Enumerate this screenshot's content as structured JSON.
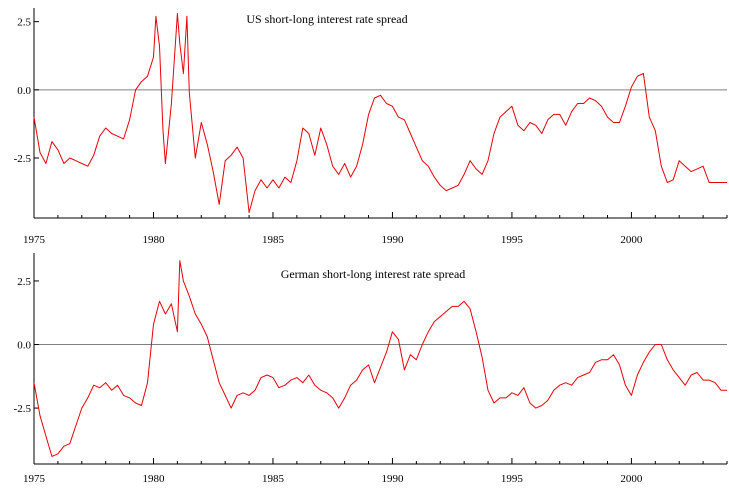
{
  "chart_data": [
    {
      "type": "line",
      "title": "US short-long interest rate spread",
      "xlim": [
        1975,
        2004.0
      ],
      "ylim": [
        -4.7,
        3.0
      ],
      "xticks": [
        1975,
        1980,
        1985,
        1990,
        1995,
        2000
      ],
      "yticks": [
        2.5,
        0.0,
        -2.5
      ],
      "ytick_labels": [
        "2.5",
        "0.0",
        "-2.5"
      ],
      "grid": false,
      "zero_line": true,
      "colors": {
        "series": "#e8000b",
        "zero_line": "#808080",
        "axis": "#000000"
      },
      "series": [
        {
          "x": [
            1975.0,
            1975.25,
            1975.5,
            1975.75,
            1976.0,
            1976.25,
            1976.5,
            1976.75,
            1977.0,
            1977.25,
            1977.5,
            1977.75,
            1978.0,
            1978.25,
            1978.5,
            1978.75,
            1979.0,
            1979.25,
            1979.5,
            1979.75,
            1980.0,
            1980.1,
            1980.25,
            1980.4,
            1980.5,
            1980.75,
            1981.0,
            1981.1,
            1981.25,
            1981.4,
            1981.5,
            1981.75,
            1982.0,
            1982.25,
            1982.5,
            1982.75,
            1983.0,
            1983.25,
            1983.5,
            1983.75,
            1984.0,
            1984.25,
            1984.5,
            1984.75,
            1985.0,
            1985.25,
            1985.5,
            1985.75,
            1986.0,
            1986.25,
            1986.5,
            1986.75,
            1987.0,
            1987.25,
            1987.5,
            1987.75,
            1988.0,
            1988.25,
            1988.5,
            1988.75,
            1989.0,
            1989.25,
            1989.5,
            1989.75,
            1990.0,
            1990.25,
            1990.5,
            1990.75,
            1991.0,
            1991.25,
            1991.5,
            1991.75,
            1992.0,
            1992.25,
            1992.5,
            1992.75,
            1993.0,
            1993.25,
            1993.5,
            1993.75,
            1994.0,
            1994.25,
            1994.5,
            1994.75,
            1995.0,
            1995.25,
            1995.5,
            1995.75,
            1996.0,
            1996.25,
            1996.5,
            1996.75,
            1997.0,
            1997.25,
            1997.5,
            1997.75,
            1998.0,
            1998.25,
            1998.5,
            1998.75,
            1999.0,
            1999.25,
            1999.5,
            1999.75,
            2000.0,
            2000.25,
            2000.5,
            2000.75,
            2001.0,
            2001.25,
            2001.5,
            2001.75,
            2002.0,
            2002.25,
            2002.5,
            2002.75,
            2003.0,
            2003.25,
            2003.5,
            2003.75,
            2004.0
          ],
          "y": [
            -1.0,
            -2.3,
            -2.7,
            -1.9,
            -2.2,
            -2.7,
            -2.5,
            -2.6,
            -2.7,
            -2.8,
            -2.4,
            -1.7,
            -1.4,
            -1.6,
            -1.7,
            -1.8,
            -1.1,
            0.0,
            0.3,
            0.5,
            1.2,
            2.7,
            1.6,
            -1.5,
            -2.7,
            -0.5,
            2.8,
            1.7,
            0.6,
            2.7,
            -0.1,
            -2.5,
            -1.2,
            -2.0,
            -3.0,
            -4.2,
            -2.6,
            -2.4,
            -2.1,
            -2.5,
            -4.5,
            -3.7,
            -3.3,
            -3.6,
            -3.3,
            -3.6,
            -3.2,
            -3.4,
            -2.6,
            -1.4,
            -1.6,
            -2.4,
            -1.4,
            -2.0,
            -2.8,
            -3.1,
            -2.7,
            -3.2,
            -2.8,
            -2.0,
            -0.9,
            -0.3,
            -0.2,
            -0.5,
            -0.6,
            -1.0,
            -1.1,
            -1.6,
            -2.1,
            -2.6,
            -2.8,
            -3.2,
            -3.5,
            -3.7,
            -3.6,
            -3.5,
            -3.1,
            -2.6,
            -2.9,
            -3.1,
            -2.6,
            -1.6,
            -1.0,
            -0.8,
            -0.6,
            -1.3,
            -1.5,
            -1.2,
            -1.3,
            -1.6,
            -1.1,
            -0.9,
            -0.9,
            -1.3,
            -0.8,
            -0.5,
            -0.5,
            -0.3,
            -0.4,
            -0.6,
            -1.0,
            -1.2,
            -1.2,
            -0.6,
            0.1,
            0.5,
            0.6,
            -1.0,
            -1.5,
            -2.8,
            -3.4,
            -3.3,
            -2.6,
            -2.8,
            -3.0,
            -2.9,
            -2.8,
            -3.4,
            -3.4,
            -3.4,
            -3.4
          ]
        }
      ]
    },
    {
      "type": "line",
      "title": "German short-long interest rate spread",
      "xlim": [
        1975,
        2004.0
      ],
      "ylim": [
        -4.7,
        3.6
      ],
      "xticks": [
        1975,
        1980,
        1985,
        1990,
        1995,
        2000
      ],
      "yticks": [
        2.5,
        0.0,
        -2.5
      ],
      "ytick_labels": [
        "2.5",
        "0.0",
        "-2.5"
      ],
      "grid": false,
      "zero_line": true,
      "colors": {
        "series": "#e8000b",
        "zero_line": "#808080",
        "axis": "#000000"
      },
      "series": [
        {
          "x": [
            1975.0,
            1975.25,
            1975.5,
            1975.75,
            1976.0,
            1976.25,
            1976.5,
            1976.75,
            1977.0,
            1977.25,
            1977.5,
            1977.75,
            1978.0,
            1978.25,
            1978.5,
            1978.75,
            1979.0,
            1979.25,
            1979.5,
            1979.75,
            1980.0,
            1980.25,
            1980.5,
            1980.75,
            1981.0,
            1981.1,
            1981.25,
            1981.5,
            1981.75,
            1982.0,
            1982.25,
            1982.5,
            1982.75,
            1983.0,
            1983.25,
            1983.5,
            1983.75,
            1984.0,
            1984.25,
            1984.5,
            1984.75,
            1985.0,
            1985.25,
            1985.5,
            1985.75,
            1986.0,
            1986.25,
            1986.5,
            1986.75,
            1987.0,
            1987.25,
            1987.5,
            1987.75,
            1988.0,
            1988.25,
            1988.5,
            1988.75,
            1989.0,
            1989.25,
            1989.5,
            1989.75,
            1990.0,
            1990.25,
            1990.5,
            1990.75,
            1991.0,
            1991.25,
            1991.5,
            1991.75,
            1992.0,
            1992.25,
            1992.5,
            1992.75,
            1993.0,
            1993.25,
            1993.5,
            1993.75,
            1994.0,
            1994.25,
            1994.5,
            1994.75,
            1995.0,
            1995.25,
            1995.5,
            1995.75,
            1996.0,
            1996.25,
            1996.5,
            1996.75,
            1997.0,
            1997.25,
            1997.5,
            1997.75,
            1998.0,
            1998.25,
            1998.5,
            1998.75,
            1999.0,
            1999.25,
            1999.5,
            1999.75,
            2000.0,
            2000.25,
            2000.5,
            2000.75,
            2001.0,
            2001.25,
            2001.5,
            2001.75,
            2002.0,
            2002.25,
            2002.5,
            2002.75,
            2003.0,
            2003.25,
            2003.5,
            2003.75,
            2004.0
          ],
          "y": [
            -1.5,
            -2.8,
            -3.6,
            -4.4,
            -4.3,
            -4.0,
            -3.9,
            -3.2,
            -2.5,
            -2.1,
            -1.6,
            -1.7,
            -1.5,
            -1.8,
            -1.6,
            -2.0,
            -2.1,
            -2.3,
            -2.4,
            -1.5,
            0.8,
            1.7,
            1.2,
            1.6,
            0.5,
            3.3,
            2.5,
            1.9,
            1.2,
            0.8,
            0.3,
            -0.6,
            -1.5,
            -2.0,
            -2.5,
            -2.0,
            -1.9,
            -2.0,
            -1.8,
            -1.3,
            -1.2,
            -1.3,
            -1.7,
            -1.6,
            -1.4,
            -1.3,
            -1.5,
            -1.2,
            -1.6,
            -1.8,
            -1.9,
            -2.1,
            -2.5,
            -2.1,
            -1.6,
            -1.4,
            -1.0,
            -0.8,
            -1.5,
            -0.9,
            -0.3,
            0.5,
            0.2,
            -1.0,
            -0.4,
            -0.6,
            0.0,
            0.5,
            0.9,
            1.1,
            1.3,
            1.5,
            1.5,
            1.7,
            1.4,
            0.5,
            -0.5,
            -1.8,
            -2.3,
            -2.1,
            -2.1,
            -1.9,
            -2.0,
            -1.7,
            -2.3,
            -2.5,
            -2.4,
            -2.2,
            -1.8,
            -1.6,
            -1.5,
            -1.6,
            -1.3,
            -1.2,
            -1.1,
            -0.7,
            -0.6,
            -0.6,
            -0.4,
            -0.8,
            -1.6,
            -2.0,
            -1.2,
            -0.7,
            -0.3,
            0.0,
            0.0,
            -0.6,
            -1.0,
            -1.3,
            -1.6,
            -1.2,
            -1.1,
            -1.4,
            -1.4,
            -1.5,
            -1.8,
            -1.8
          ]
        }
      ]
    }
  ]
}
